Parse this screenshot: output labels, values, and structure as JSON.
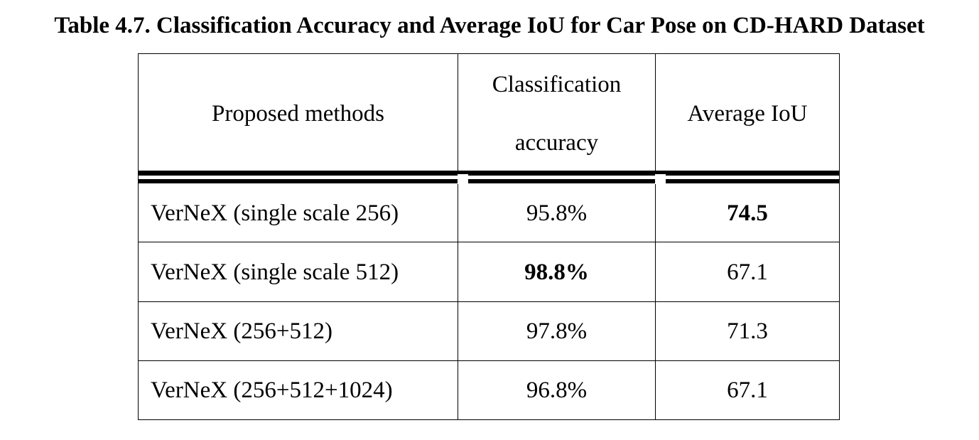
{
  "caption": "Table 4.7. Classification Accuracy and Average IoU for Car Pose on CD-HARD Dataset",
  "table": {
    "headers": {
      "method": "Proposed methods",
      "accuracy_line1": "Classification",
      "accuracy_line2": "accuracy",
      "iou": "Average IoU"
    },
    "rows": [
      {
        "method": "VerNeX (single scale 256)",
        "accuracy": "95.8%",
        "iou": "74.5",
        "accuracy_bold": false,
        "iou_bold": true
      },
      {
        "method": "VerNeX (single scale 512)",
        "accuracy": "98.8%",
        "iou": "67.1",
        "accuracy_bold": true,
        "iou_bold": false
      },
      {
        "method": "VerNeX (256+512)",
        "accuracy": "97.8%",
        "iou": "71.3",
        "accuracy_bold": false,
        "iou_bold": false
      },
      {
        "method": "VerNeX (256+512+1024)",
        "accuracy": "96.8%",
        "iou": "67.1",
        "accuracy_bold": false,
        "iou_bold": false
      }
    ]
  }
}
